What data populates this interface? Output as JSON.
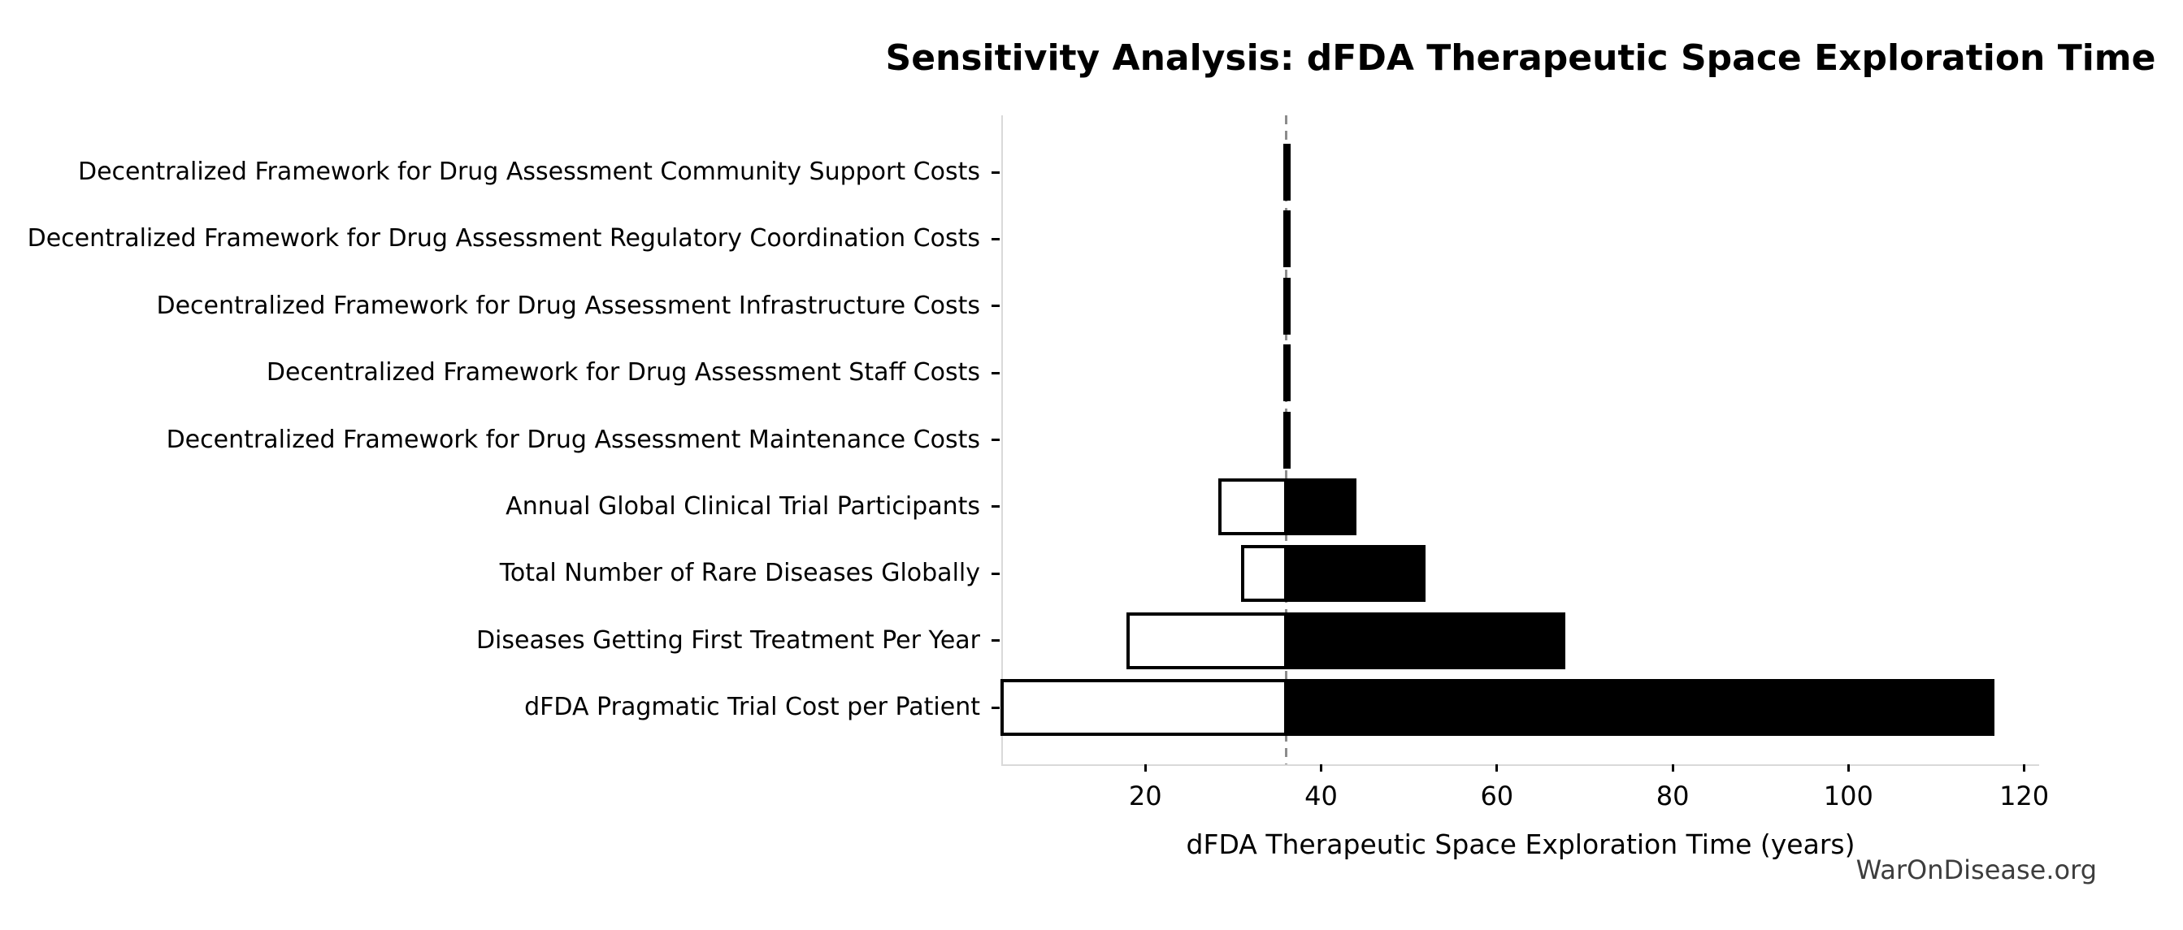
{
  "chart_data": {
    "type": "bar",
    "subtype": "tornado-sensitivity",
    "title": "Sensitivity Analysis: dFDA Therapeutic Space Exploration Time",
    "xlabel": "dFDA Therapeutic Space Exploration Time (years)",
    "watermark": "WarOnDisease.org",
    "baseline": 36,
    "xlim": [
      3.7,
      121.7
    ],
    "xticks": [
      20,
      40,
      60,
      80,
      100,
      120
    ],
    "grid": false,
    "legend": "none",
    "categories": [
      "Decentralized Framework for Drug Assessment Community Support Costs",
      "Decentralized Framework for Drug Assessment Regulatory Coordination Costs",
      "Decentralized Framework for Drug Assessment Infrastructure Costs",
      "Decentralized Framework for Drug Assessment Staff Costs",
      "Decentralized Framework for Drug Assessment Maintenance Costs",
      "Annual Global Clinical Trial Participants",
      "Total Number of Rare Diseases Globally",
      "Diseases Getting First Treatment Per Year",
      "dFDA Pragmatic Trial Cost per Patient"
    ],
    "parameters": [
      {
        "label": "Decentralized Framework for Drug Assessment Community Support Costs",
        "low": 35.9,
        "high": 36.1
      },
      {
        "label": "Decentralized Framework for Drug Assessment Regulatory Coordination Costs",
        "low": 35.9,
        "high": 36.1
      },
      {
        "label": "Decentralized Framework for Drug Assessment Infrastructure Costs",
        "low": 35.9,
        "high": 36.1
      },
      {
        "label": "Decentralized Framework for Drug Assessment Staff Costs",
        "low": 35.9,
        "high": 36.1
      },
      {
        "label": "Decentralized Framework for Drug Assessment Maintenance Costs",
        "low": 35.9,
        "high": 36.1
      },
      {
        "label": "Annual Global Clinical Trial Participants",
        "low": 28.5,
        "high": 43.8
      },
      {
        "label": "Total Number of Rare Diseases Globally",
        "low": 31.1,
        "high": 51.7
      },
      {
        "label": "Diseases Getting First Treatment Per Year",
        "low": 18.0,
        "high": 67.6
      },
      {
        "label": "dFDA Pragmatic Trial Cost per Patient",
        "low": 3.7,
        "high": 116.4
      }
    ],
    "colors": {
      "bar_low_fill": "#ffffff",
      "bar_high_fill": "#000000",
      "bar_edge": "#000000",
      "baseline_line": "#8c8c8c",
      "spine": "#d9d9d9",
      "tick": "#000000",
      "text": "#000000",
      "watermark_text": "#3d3d3d"
    }
  }
}
